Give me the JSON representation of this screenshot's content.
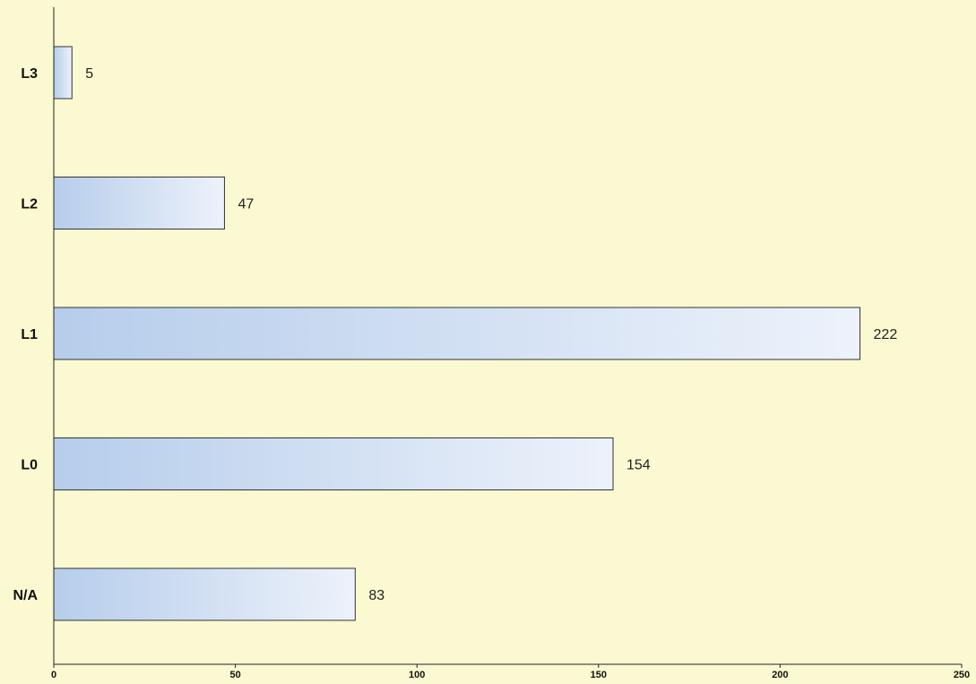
{
  "chart_data": {
    "type": "bar",
    "orientation": "horizontal",
    "categories": [
      "L3",
      "L2",
      "L1",
      "L0",
      "N/A"
    ],
    "values": [
      5,
      47,
      222,
      154,
      83
    ],
    "data_labels": [
      "5",
      "47",
      "222",
      "154",
      "83"
    ],
    "x_ticks": [
      "0",
      "50",
      "100",
      "150",
      "200",
      "250"
    ],
    "xlim": [
      0,
      250
    ],
    "title": "",
    "xlabel": "",
    "ylabel": "",
    "grid": false,
    "legend": "none",
    "colors": {
      "background": "#fbf9d1",
      "bar_start": "#b6cdeb",
      "bar_end": "#edf2fb",
      "bar_stroke": "#333333",
      "axis": "#222222"
    }
  }
}
